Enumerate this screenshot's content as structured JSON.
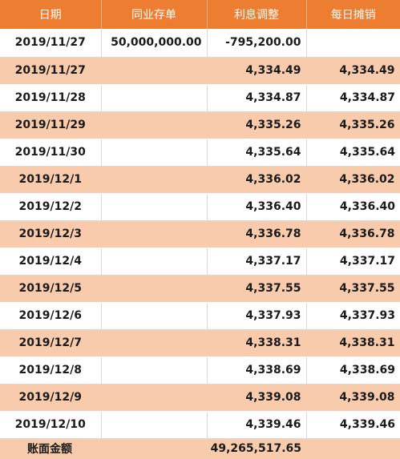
{
  "columns": [
    "日期",
    "同业存单",
    "利息调整",
    "每日摊销"
  ],
  "rows": [
    {
      "date": "2019/11/27",
      "deposit": "50,000,000.00",
      "adjust": "-795,200.00",
      "amort": ""
    },
    {
      "date": "2019/11/27",
      "deposit": "",
      "adjust": "4,334.49",
      "amort": "4,334.49"
    },
    {
      "date": "2019/11/28",
      "deposit": "",
      "adjust": "4,334.87",
      "amort": "4,334.87"
    },
    {
      "date": "2019/11/29",
      "deposit": "",
      "adjust": "4,335.26",
      "amort": "4,335.26"
    },
    {
      "date": "2019/11/30",
      "deposit": "",
      "adjust": "4,335.64",
      "amort": "4,335.64"
    },
    {
      "date": "2019/12/1",
      "deposit": "",
      "adjust": "4,336.02",
      "amort": "4,336.02"
    },
    {
      "date": "2019/12/2",
      "deposit": "",
      "adjust": "4,336.40",
      "amort": "4,336.40"
    },
    {
      "date": "2019/12/3",
      "deposit": "",
      "adjust": "4,336.78",
      "amort": "4,336.78"
    },
    {
      "date": "2019/12/4",
      "deposit": "",
      "adjust": "4,337.17",
      "amort": "4,337.17"
    },
    {
      "date": "2019/12/5",
      "deposit": "",
      "adjust": "4,337.55",
      "amort": "4,337.55"
    },
    {
      "date": "2019/12/6",
      "deposit": "",
      "adjust": "4,337.93",
      "amort": "4,337.93"
    },
    {
      "date": "2019/12/7",
      "deposit": "",
      "adjust": "4,338.31",
      "amort": "4,338.31"
    },
    {
      "date": "2019/12/8",
      "deposit": "",
      "adjust": "4,338.69",
      "amort": "4,338.69"
    },
    {
      "date": "2019/12/9",
      "deposit": "",
      "adjust": "4,339.08",
      "amort": "4,339.08"
    },
    {
      "date": "2019/12/10",
      "deposit": "",
      "adjust": "4,339.46",
      "amort": "4,339.46"
    }
  ],
  "footer": {
    "label": "账面金额",
    "total": "49,265,517.65"
  },
  "colors": {
    "header_bg": "#ed7d31",
    "band_bg": "#f8cbad",
    "header_text": "#ffffff"
  }
}
